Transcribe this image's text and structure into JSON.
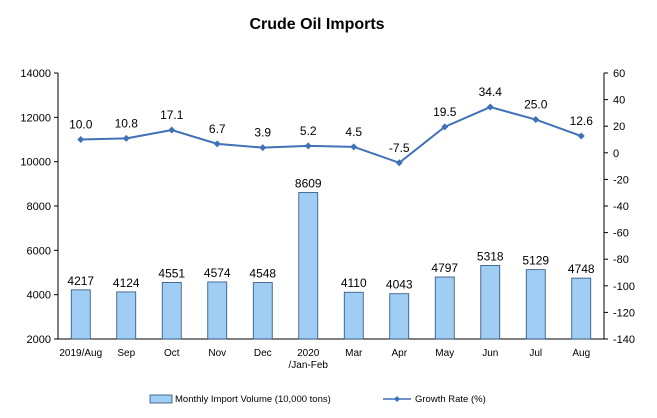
{
  "chart_data": {
    "type": "bar",
    "title": "Crude Oil Imports",
    "categories": [
      "2019/Aug",
      "Sep",
      "Oct",
      "Nov",
      "Dec",
      "2020\n/Jan-Feb",
      "Mar",
      "Apr",
      "May",
      "Jun",
      "Jul",
      "Aug"
    ],
    "series": [
      {
        "name": "Monthly Import Volume (10,000 tons)",
        "type": "bar",
        "axis": "left",
        "values": [
          4217,
          4124,
          4551,
          4574,
          4548,
          8609,
          4110,
          4043,
          4797,
          5318,
          5129,
          4748
        ],
        "labels": [
          "4217",
          "4124",
          "4551",
          "4574",
          "4548",
          "8609",
          "4110",
          "4043",
          "4797",
          "5318",
          "5129",
          "4748"
        ]
      },
      {
        "name": "Growth Rate (%)",
        "type": "line",
        "axis": "right",
        "values": [
          10.0,
          10.8,
          17.1,
          6.7,
          3.9,
          5.2,
          4.5,
          -7.5,
          19.5,
          34.4,
          25.0,
          12.6
        ],
        "labels": [
          "10.0",
          "10.8",
          "17.1",
          "6.7",
          "3.9",
          "5.2",
          "4.5",
          "-7.5",
          "19.5",
          "34.4",
          "25.0",
          "12.6"
        ]
      }
    ],
    "y_left": {
      "lim": [
        2000,
        14000
      ],
      "ticks": [
        "2000",
        "4000",
        "6000",
        "8000",
        "10000",
        "12000",
        "14000"
      ]
    },
    "y_right": {
      "lim": [
        -140,
        60
      ],
      "ticks": [
        "-140",
        "-120",
        "-100",
        "-80",
        "-60",
        "-40",
        "-20",
        "0",
        "20",
        "40",
        "60"
      ]
    },
    "grid": false,
    "legend_position": "bottom",
    "colors": {
      "bar_fill": "#9fcdf3",
      "bar_stroke": "#2b4f7a",
      "line": "#3f72b8",
      "axis": "#000000"
    }
  }
}
